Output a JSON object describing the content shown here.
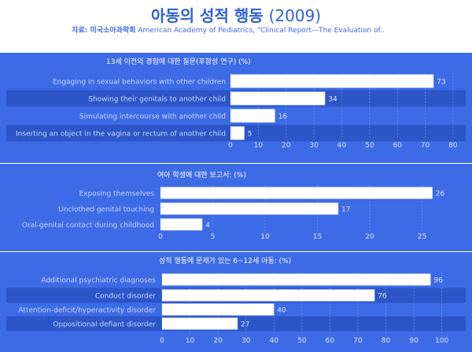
{
  "header": {
    "title_main": "아동의 성적 행동",
    "title_year": "(2009)",
    "source_label": "자료: 미국소아과학회",
    "source_text": "American Academy of Pediatrics, \"Clinical Report—The Evaluation of.."
  },
  "colors": {
    "panel_bg": "#3d6be6",
    "band": "#2c55c8",
    "bar": "#ffffff",
    "label_text": "#c9d8ff",
    "value_text": "#dbe6ff",
    "axis_text": "#dbe6ff",
    "grid": "#7c9cf0"
  },
  "chart_data": [
    {
      "type": "bar",
      "orientation": "horizontal",
      "title": "13세 이전의 경험에 대한 질문(후향성 연구) (%)",
      "categories": [
        "Engaging in sexual behaviors with other children",
        "Showing their genitals to another child",
        "Simulating intercourse with another child",
        "Inserting an object in the vagina or rectum of another child"
      ],
      "values": [
        73,
        34,
        16,
        5
      ],
      "value_labels": [
        "73",
        "34",
        "16",
        "5"
      ],
      "xlim": [
        0,
        82
      ],
      "ticks": [
        0,
        10,
        20,
        30,
        40,
        50,
        60,
        70,
        80
      ],
      "tick_labels": [
        "0",
        "10",
        "20",
        "30",
        "40",
        "50",
        "60",
        "70",
        "80"
      ],
      "grid": true
    },
    {
      "type": "bar",
      "orientation": "horizontal",
      "title": "여아 학생에 대한 보고서: (%)",
      "categories": [
        "Exposing themselves",
        "Unclothed genital touching",
        "Oral-genital contact during childhood"
      ],
      "values": [
        26,
        17,
        4
      ],
      "value_labels": [
        "26",
        "17",
        "4"
      ],
      "xlim": [
        0,
        28.5
      ],
      "ticks": [
        0,
        5,
        10,
        15,
        20,
        25
      ],
      "tick_labels": [
        "0",
        "5",
        "10",
        "15",
        "20",
        "25"
      ],
      "grid": true
    },
    {
      "type": "bar",
      "orientation": "horizontal",
      "title": "성적 행동에 문제가 있는 6~12세 아동: (%)",
      "categories": [
        "Additional psychiatric diagnoses",
        "Conduct disorder",
        "Attention-deficit/hyperactivity disorder",
        "Oppositional defiant disorder"
      ],
      "values": [
        96,
        76,
        40,
        27
      ],
      "value_labels": [
        "96",
        "76",
        "40",
        "27"
      ],
      "xlim": [
        0,
        106
      ],
      "ticks": [
        0,
        10,
        20,
        30,
        40,
        50,
        60,
        70,
        80,
        90,
        100
      ],
      "tick_labels": [
        "0",
        "10",
        "20",
        "30",
        "40",
        "50",
        "60",
        "70",
        "80",
        "90",
        "100"
      ],
      "grid": true
    }
  ]
}
